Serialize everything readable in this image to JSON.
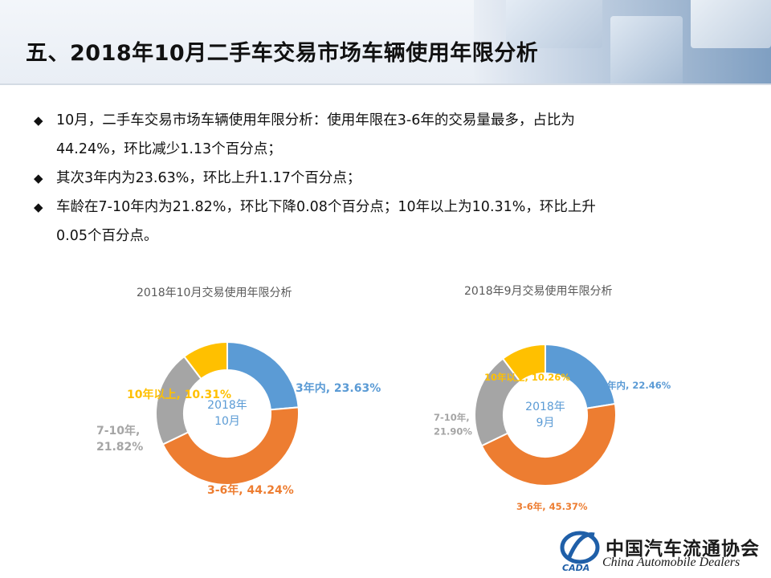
{
  "page": {
    "title": "五、2018年10月二手车交易市场车辆使用年限分析",
    "bullets": [
      {
        "lines": [
          "10月，二手车交易市场车辆使用年限分析：使用年限在3-6年的交易量最多，占比为",
          "44.24%，环比减少1.13个百分点；"
        ]
      },
      {
        "lines": [
          "其次3年内为23.63%，环比上升1.17个百分点；"
        ]
      },
      {
        "lines": [
          "车龄在7-10年内为21.82%，环比下降0.08个百分点；10年以上为10.31%，环比上升",
          "0.05个百分点。"
        ]
      }
    ],
    "bullet_symbol": "◆"
  },
  "logo": {
    "name_cn": "中国汽车流通协会",
    "name_en": "China Automobile Dealers",
    "mark_text": "CADA"
  },
  "chart_data": [
    {
      "type": "pie",
      "donut": true,
      "title": "2018年10月交易使用年限分析",
      "center_label": [
        "2018年",
        "10月"
      ],
      "slices": [
        {
          "label": "3年内",
          "value": 23.63,
          "display": "3年内, 23.63%",
          "color": "#5b9bd5"
        },
        {
          "label": "3-6年",
          "value": 44.24,
          "display": "3-6年, 44.24%",
          "color": "#ed7d31"
        },
        {
          "label": "7-10年",
          "value": 21.82,
          "display": [
            "7-10年,",
            "21.82%"
          ],
          "color": "#a5a5a5"
        },
        {
          "label": "10年以上",
          "value": 10.31,
          "display": "10年以上, 10.31%",
          "color": "#ffc000"
        }
      ]
    },
    {
      "type": "pie",
      "donut": true,
      "title": "2018年9月交易使用年限分析",
      "center_label": [
        "2018年",
        "9月"
      ],
      "slices": [
        {
          "label": "3年内",
          "value": 22.46,
          "display": "3年内, 22.46%",
          "color": "#5b9bd5"
        },
        {
          "label": "3-6年",
          "value": 45.37,
          "display": "3-6年, 45.37%",
          "color": "#ed7d31"
        },
        {
          "label": "7-10年",
          "value": 21.9,
          "display": [
            "7-10年,",
            "21.90%"
          ],
          "color": "#a5a5a5"
        },
        {
          "label": "10年以上",
          "value": 10.26,
          "display": "10年以上, 10.26%",
          "color": "#ffc000"
        }
      ]
    }
  ]
}
